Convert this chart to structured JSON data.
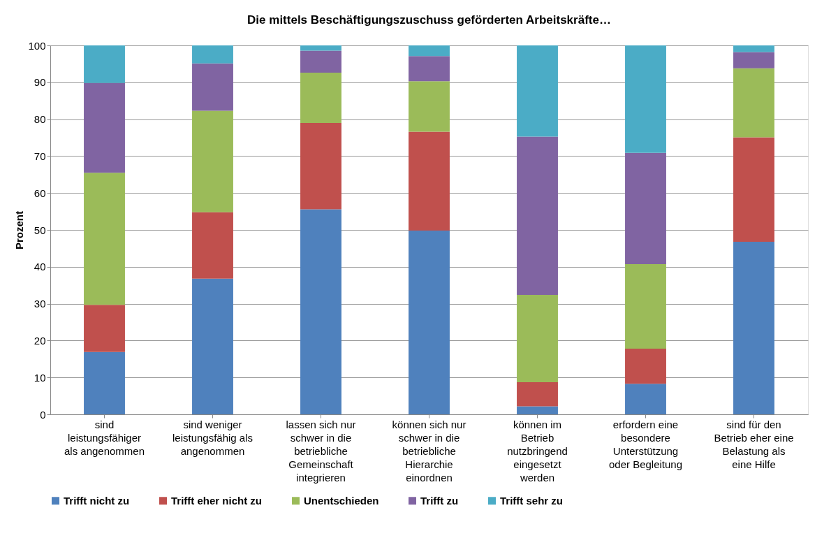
{
  "chart_data": {
    "type": "bar",
    "stacked": true,
    "title": "Die mittels Beschäftigungszuschuss geförderten Arbeitskräfte…",
    "ylabel": "Prozent",
    "categories": [
      "sind\nleistungsfähiger\nals angenommen",
      "sind weniger\nleistungsfähig als\nangenommen",
      "lassen sich nur\nschwer in die\nbetriebliche\nGemeinschaft\nintegrieren",
      "können sich nur\nschwer in die\nbetriebliche\nHierarchie\neinordnen",
      "können im\nBetrieb\nnutzbringend\neingesetzt\nwerden",
      "erfordern eine\nbesondere\nUnterstützung\noder Begleitung",
      "sind für den\nBetrieb eher eine\nBelastung als\neine Hilfe"
    ],
    "series": [
      {
        "name": "Trifft nicht zu",
        "color": "#4f81bd",
        "values": [
          16.9,
          36.8,
          55.6,
          49.8,
          2.2,
          8.3,
          46.8
        ]
      },
      {
        "name": "Trifft eher nicht zu",
        "color": "#c0504d",
        "values": [
          12.8,
          18.0,
          23.4,
          26.8,
          6.5,
          9.5,
          28.3
        ]
      },
      {
        "name": "Unentschieden",
        "color": "#9bbb59",
        "values": [
          35.8,
          27.5,
          13.6,
          13.7,
          23.7,
          22.9,
          18.7
        ]
      },
      {
        "name": "Trifft zu",
        "color": "#8064a2",
        "values": [
          24.3,
          12.8,
          6.0,
          6.8,
          42.9,
          30.2,
          4.4
        ]
      },
      {
        "name": "Trifft sehr zu",
        "color": "#4bacc6",
        "values": [
          10.2,
          4.9,
          1.4,
          2.9,
          24.7,
          29.1,
          1.8
        ]
      }
    ],
    "ylim": [
      0,
      100
    ],
    "yticks": [
      0,
      10,
      20,
      30,
      40,
      50,
      60,
      70,
      80,
      90,
      100
    ],
    "grid": "y",
    "legend": "bottom"
  }
}
